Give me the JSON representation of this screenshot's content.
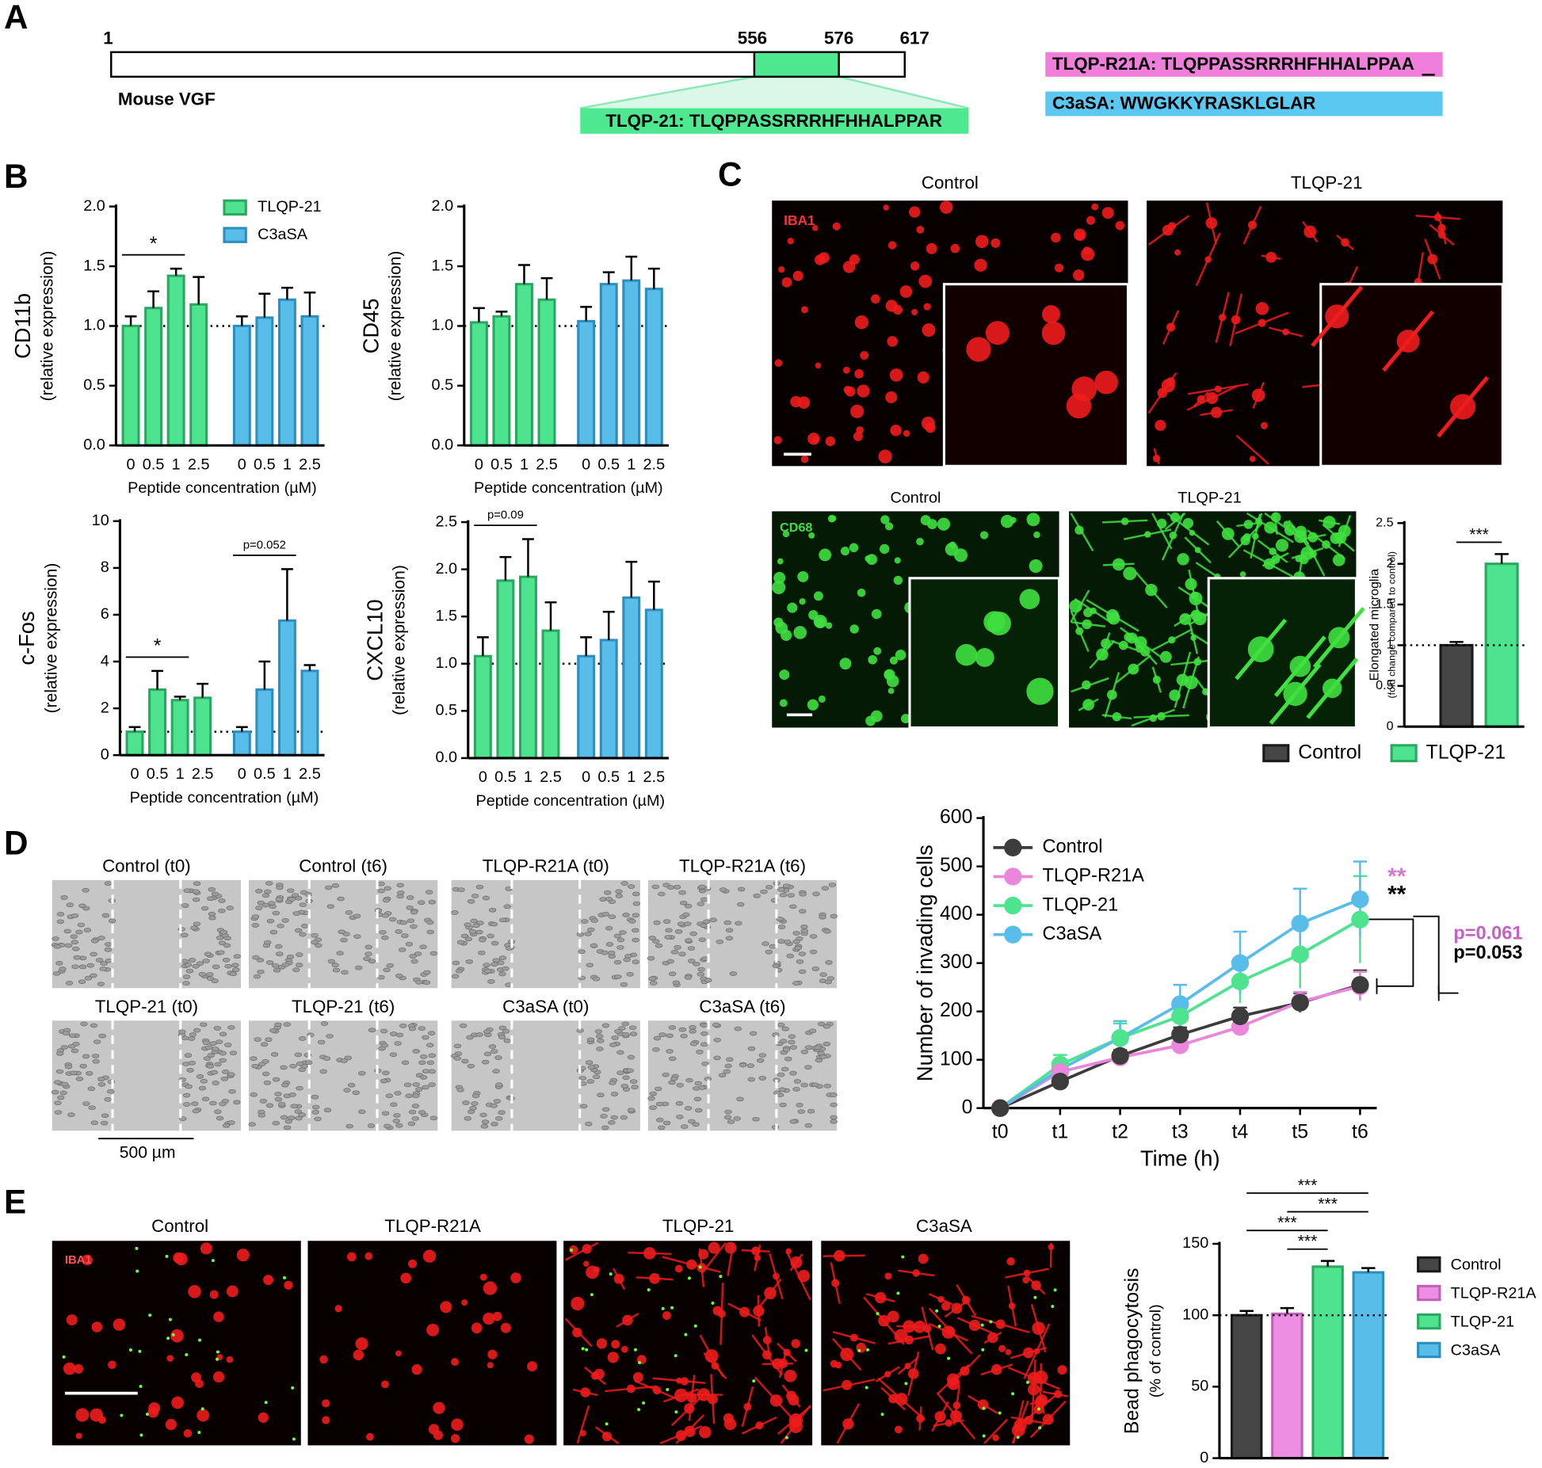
{
  "figure": {
    "panel_labels": [
      "A",
      "B",
      "C",
      "D",
      "E"
    ],
    "vgf": {
      "positions": [
        1,
        556,
        576,
        617
      ],
      "name": "Mouse VGF",
      "tlqp21": "TLQP-21: TLQPPASSRRRHFHHALPPAR",
      "r21a": "TLQP-R21A: TLQPPASSRRRHFHHALPPAA",
      "c3asa": "C3aSA: WWGKKYRASKLGLAR"
    },
    "microglia": {
      "top_headers": [
        "Control",
        "TLQP-21"
      ],
      "top_stain": "IBA1",
      "bottom_headers": [
        "Control",
        "TLQP-21"
      ],
      "bottom_stain": "CD68"
    },
    "scratch": {
      "labels": [
        "Control (t0)",
        "Control (t6)",
        "TLQP-R21A (t0)",
        "TLQP-R21A (t6)",
        "TLQP-21 (t0)",
        "TLQP-21 (t6)",
        "C3aSA (t0)",
        "C3aSA (t6)"
      ],
      "scale_bar": "500 µm"
    },
    "phagocytosis_images": {
      "labels": [
        "Control",
        "TLQP-R21A",
        "TLQP-21",
        "C3aSA"
      ],
      "stain": "IBA1"
    }
  },
  "chart_data": [
    {
      "type": "bar",
      "ylabel": "CD11b",
      "ylabel_note": "(relative expression)",
      "xlabel": "Peptide concentration (µM)",
      "categories": [
        "0",
        "0.5",
        "1",
        "2.5"
      ],
      "series": [
        {
          "name": "TLQP-21",
          "color": "#4ee38f",
          "edge": "#2aa862",
          "values": [
            1.0,
            1.15,
            1.42,
            1.18
          ],
          "errors": [
            0.08,
            0.14,
            0.06,
            0.23
          ]
        },
        {
          "name": "C3aSA",
          "color": "#58bde9",
          "edge": "#2d8fc0",
          "values": [
            1.0,
            1.07,
            1.22,
            1.08
          ],
          "errors": [
            0.08,
            0.2,
            0.1,
            0.2
          ]
        }
      ],
      "ylim": [
        0,
        2
      ],
      "yticks": [
        {
          "value": 0,
          "label": "0.0"
        },
        0.5,
        {
          "value": 1,
          "label": "1.0"
        },
        1.5,
        {
          "value": 2,
          "label": "2.0"
        }
      ],
      "reference_line": 1,
      "legend": "top-right",
      "annotations": [
        {
          "text": "*",
          "series": 0,
          "from": 0,
          "to": 2
        }
      ]
    },
    {
      "type": "bar",
      "ylabel": "CD45",
      "ylabel_note": "(relative expression)",
      "xlabel": "Peptide concentration (µM)",
      "categories": [
        "0",
        "0.5",
        "1",
        "2.5"
      ],
      "series": [
        {
          "color": "#4ee38f",
          "edge": "#2aa862",
          "values": [
            1.03,
            1.08,
            1.35,
            1.22
          ],
          "errors": [
            0.12,
            0.04,
            0.16,
            0.18
          ]
        },
        {
          "color": "#58bde9",
          "edge": "#2d8fc0",
          "values": [
            1.04,
            1.35,
            1.38,
            1.31
          ],
          "errors": [
            0.12,
            0.1,
            0.2,
            0.17
          ]
        }
      ],
      "ylim": [
        0,
        2
      ],
      "yticks": [
        {
          "value": 0,
          "label": "0.0"
        },
        0.5,
        {
          "value": 1,
          "label": "1.0"
        },
        1.5,
        {
          "value": 2,
          "label": "2.0"
        }
      ],
      "reference_line": 1
    },
    {
      "type": "bar",
      "ylabel": "c-Fos",
      "ylabel_note": "(relative expression)",
      "xlabel": "Peptide concentration (µM)",
      "categories": [
        "0",
        "0.5",
        "1",
        "2.5"
      ],
      "series": [
        {
          "color": "#4ee38f",
          "edge": "#2aa862",
          "values": [
            1.0,
            2.8,
            2.35,
            2.45
          ],
          "errors": [
            0.2,
            0.8,
            0.15,
            0.6
          ]
        },
        {
          "color": "#58bde9",
          "edge": "#2d8fc0",
          "values": [
            1.0,
            2.8,
            5.75,
            3.6
          ],
          "errors": [
            0.2,
            1.2,
            2.2,
            0.25
          ]
        }
      ],
      "ylim": [
        0,
        10
      ],
      "yticks": [
        0,
        2,
        4,
        6,
        8,
        10
      ],
      "reference_line": 1,
      "annotations": [
        {
          "text": "*",
          "series": 0,
          "from": 0,
          "to": 2
        },
        {
          "text": "p=0.052",
          "series": 1,
          "from": 0,
          "to": 2
        }
      ]
    },
    {
      "type": "bar",
      "ylabel": "CXCL10",
      "ylabel_note": "(relative expression)",
      "xlabel": "Peptide concentration (µM)",
      "categories": [
        "0",
        "0.5",
        "1",
        "2.5"
      ],
      "series": [
        {
          "color": "#4ee38f",
          "edge": "#2aa862",
          "values": [
            1.08,
            1.88,
            1.92,
            1.35
          ],
          "errors": [
            0.2,
            0.25,
            0.4,
            0.3
          ]
        },
        {
          "color": "#58bde9",
          "edge": "#2d8fc0",
          "values": [
            1.08,
            1.25,
            1.7,
            1.57
          ],
          "errors": [
            0.2,
            0.3,
            0.38,
            0.3
          ]
        }
      ],
      "ylim": [
        0,
        2.5
      ],
      "yticks": [
        {
          "value": 0,
          "label": "0.0"
        },
        0.5,
        {
          "value": 1,
          "label": "1.0"
        },
        1.5,
        {
          "value": 2,
          "label": "2.0"
        },
        2.5
      ],
      "reference_line": 1,
      "annotations": [
        {
          "text": "p=0.09",
          "series": 0,
          "from": 0,
          "to": 2
        }
      ]
    },
    {
      "type": "bar",
      "ylabel": "Elongated microglia",
      "ylabel_note": "(fold change compared to control)",
      "categories": [
        "Control",
        "TLQP-21"
      ],
      "values": [
        1.0,
        2.0
      ],
      "errors": [
        0.04,
        0.12
      ],
      "colors": [
        "#454545",
        "#4ee38f"
      ],
      "edges": [
        "#1a1a1a",
        "#2aa862"
      ],
      "ylim": [
        0,
        2.5
      ],
      "yticks": [
        0,
        0.5,
        1,
        1.5,
        2,
        2.5
      ],
      "reference_line": 1,
      "legend": "bottom",
      "annotations": [
        {
          "text": "***",
          "from": 0,
          "to": 1
        }
      ]
    },
    {
      "type": "line",
      "xlabel": "Time (h)",
      "ylabel": "Number of invading cells",
      "categories": [
        "t0",
        "t1",
        "t2",
        "t3",
        "t4",
        "t5",
        "t6"
      ],
      "series": [
        {
          "name": "Control",
          "color": "#3c3c3c",
          "values": [
            0,
            55,
            108,
            152,
            190,
            218,
            255
          ],
          "errors": [
            5,
            8,
            12,
            15,
            18,
            20,
            30
          ]
        },
        {
          "name": "TLQP-R21A",
          "color": "#ea86dc",
          "values": [
            0,
            75,
            105,
            130,
            168,
            220,
            252
          ],
          "errors": [
            5,
            10,
            12,
            12,
            15,
            20,
            30
          ]
        },
        {
          "name": "TLQP-21",
          "color": "#4ee38f",
          "values": [
            0,
            90,
            145,
            190,
            262,
            318,
            390
          ],
          "errors": [
            5,
            20,
            30,
            35,
            45,
            70,
            90
          ]
        },
        {
          "name": "C3aSA",
          "color": "#58bde9",
          "values": [
            0,
            80,
            145,
            215,
            300,
            382,
            432
          ],
          "errors": [
            5,
            15,
            35,
            40,
            65,
            72,
            78
          ]
        }
      ],
      "ylim": [
        0,
        600
      ],
      "yticks": [
        0,
        100,
        200,
        300,
        400,
        500,
        600
      ],
      "legend": "top-left",
      "annotations": [
        {
          "text": "**",
          "color": "#d57ad0"
        },
        {
          "text": "**",
          "color": "#000000"
        },
        {
          "text": "p=0.061",
          "color": "#c561c4"
        },
        {
          "text": "p=0.053",
          "color": "#000000"
        }
      ]
    },
    {
      "type": "bar",
      "ylabel": "Bead phagocytosis",
      "ylabel_note": "(% of control)",
      "categories": [
        "Control",
        "TLQP-R21A",
        "TLQP-21",
        "C3aSA"
      ],
      "values": [
        100,
        101,
        134,
        130
      ],
      "errors": [
        3,
        4,
        4,
        3
      ],
      "colors": [
        "#454545",
        "#ee8ee2",
        "#4ee38f",
        "#58bde9"
      ],
      "edges": [
        "#1a1a1a",
        "#c060b8",
        "#2aa862",
        "#2d8fc0"
      ],
      "ylim": [
        0,
        150
      ],
      "yticks": [
        0,
        50,
        100,
        150
      ],
      "reference_line": 100,
      "legend": "right",
      "annotations": [
        {
          "text": "***",
          "from": 0,
          "to": 3
        },
        {
          "text": "***",
          "from": 1,
          "to": 3
        },
        {
          "text": "***",
          "from": 0,
          "to": 2
        },
        {
          "text": "***",
          "from": 1,
          "to": 2
        }
      ]
    }
  ]
}
